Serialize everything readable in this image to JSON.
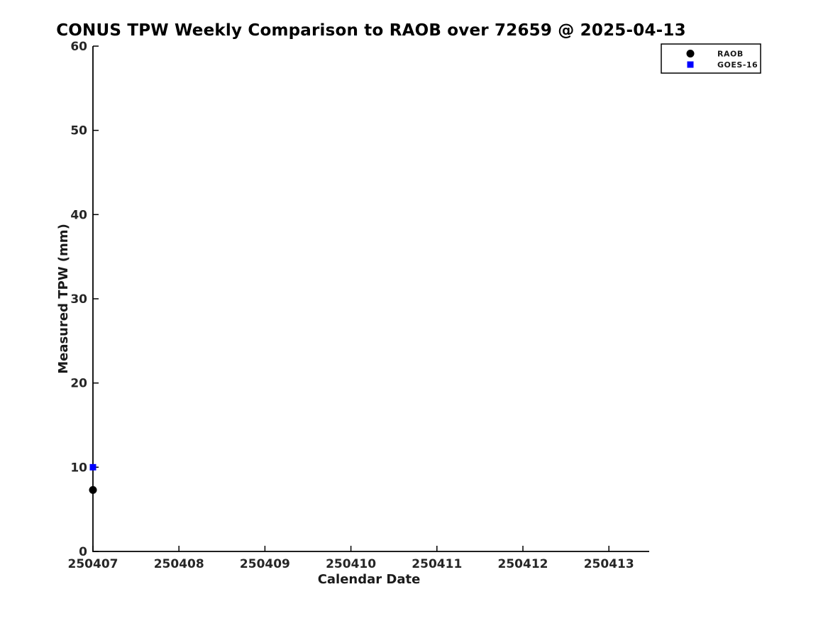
{
  "colors": {
    "background": "#ffffff",
    "axis": "#000000",
    "text": "#1a1a1a",
    "tick_label": "#262626",
    "raob": "#000000",
    "goes16": "#0000ff",
    "legend_border": "#000000",
    "legend_background": "#ffffff"
  },
  "chart_data": {
    "type": "scatter",
    "title": "CONUS TPW Weekly Comparison to RAOB over 72659 @ 2025-04-13",
    "xlabel": "Calendar Date",
    "ylabel": "Measured TPW (mm)",
    "x_tick_labels": [
      "250407",
      "250408",
      "250409",
      "250410",
      "250411",
      "250412",
      "250413"
    ],
    "y_ticks": [
      0,
      10,
      20,
      30,
      40,
      50,
      60
    ],
    "ylim": [
      0,
      60
    ],
    "grid": false,
    "legend": {
      "position": "top-right",
      "entries": [
        {
          "label": "RAOB",
          "marker": "circle",
          "color": "#000000"
        },
        {
          "label": "GOES-16",
          "marker": "square",
          "color": "#0000ff"
        }
      ]
    },
    "series": [
      {
        "name": "RAOB",
        "marker": "circle",
        "color": "#000000",
        "points": [
          {
            "x": "250407",
            "y": 7.3
          }
        ]
      },
      {
        "name": "GOES-16",
        "marker": "square",
        "color": "#0000ff",
        "points": [
          {
            "x": "250407",
            "y": 10.0
          }
        ]
      }
    ]
  }
}
